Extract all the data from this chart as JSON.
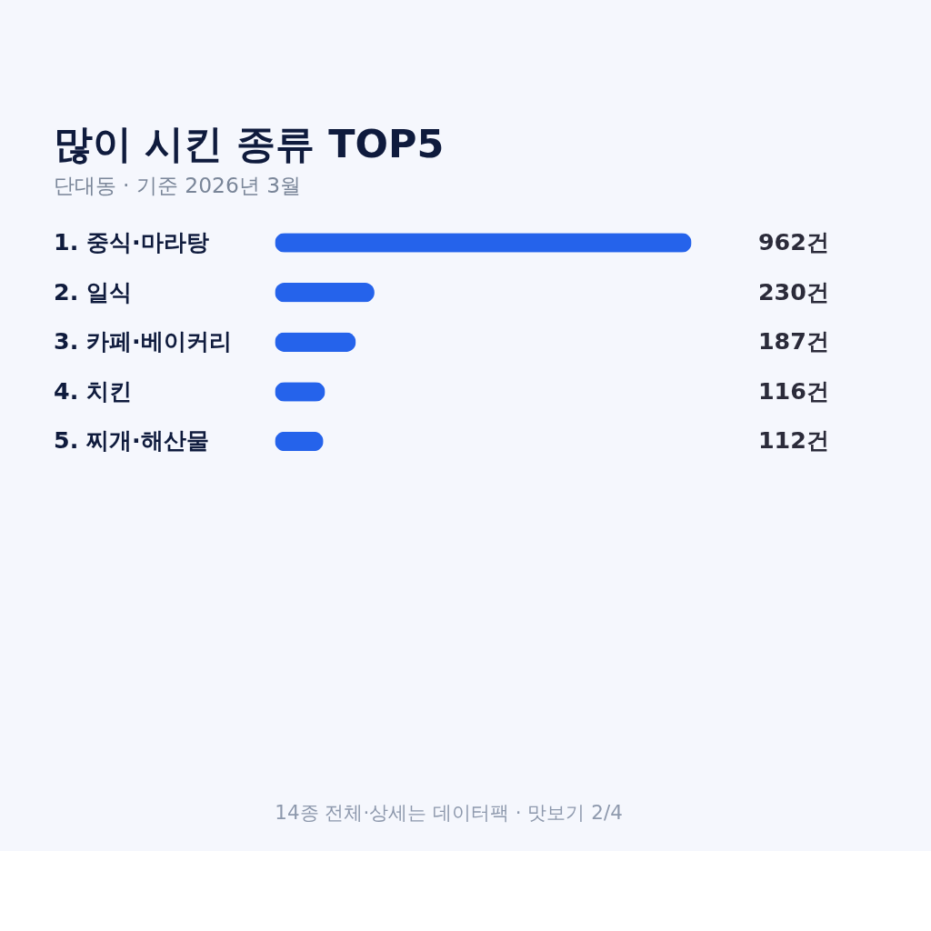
{
  "chart_data": {
    "type": "bar",
    "orientation": "horizontal",
    "title": "많이 시킨 종류 TOP5",
    "subtitle": "단대동 · 기준 2026년 3월",
    "categories": [
      "1. 중식·마라탕",
      "2. 일식",
      "3. 카페·베이커리",
      "4. 치킨",
      "5. 찌개·해산물"
    ],
    "values": [
      962,
      230,
      187,
      116,
      112
    ],
    "value_labels": [
      "962건",
      "230건",
      "187건",
      "116건",
      "112건"
    ],
    "color": "#2563eb",
    "annotations": [
      "14종 전체·상세는 데이터팩 · 맛보기 2/4"
    ]
  }
}
